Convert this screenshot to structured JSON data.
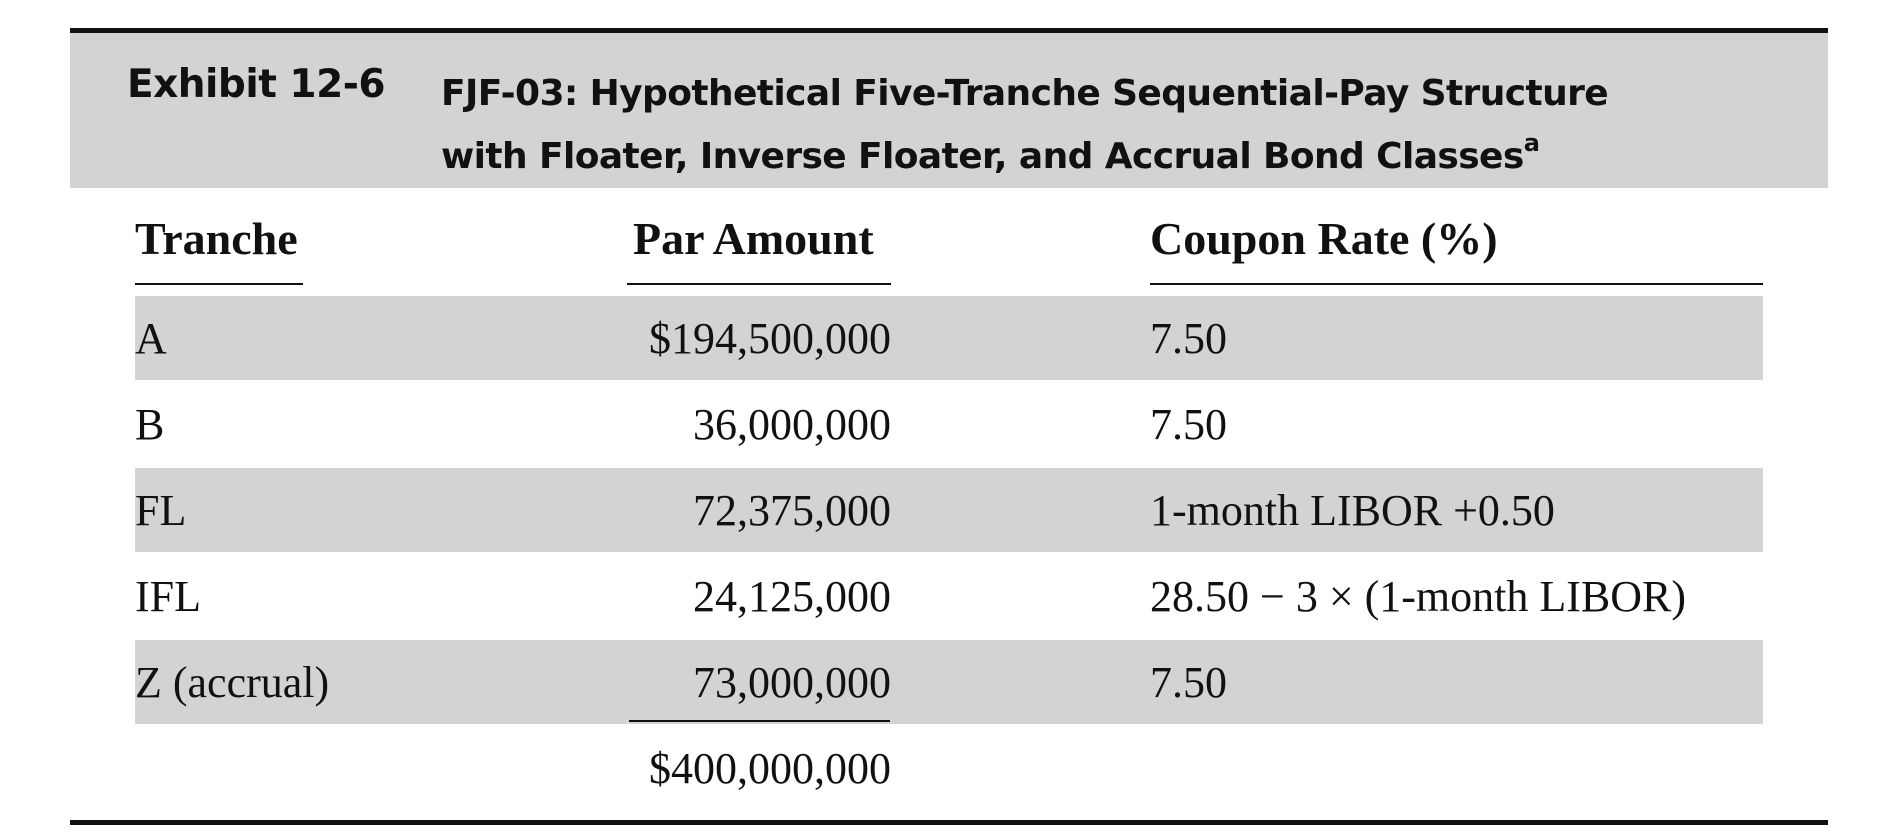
{
  "exhibit": {
    "label": "Exhibit 12-6",
    "title_line1": "FJF-03: Hypothetical Five-Tranche Sequential-Pay Structure",
    "title_line2": "with Floater, Inverse Floater, and Accrual Bond Classes",
    "title_footnote_mark": "a"
  },
  "table": {
    "headers": {
      "tranche": "Tranche",
      "par_amount": "Par Amount",
      "coupon_rate": "Coupon Rate (%)"
    },
    "rows": [
      {
        "tranche": "A",
        "par_amount": "$194,500,000",
        "coupon_rate": "7.50",
        "shaded": true
      },
      {
        "tranche": "B",
        "par_amount": "36,000,000",
        "coupon_rate": "7.50",
        "shaded": false
      },
      {
        "tranche": "FL",
        "par_amount": "72,375,000",
        "coupon_rate": "1-month LIBOR +0.50",
        "shaded": true
      },
      {
        "tranche": "IFL",
        "par_amount": "24,125,000",
        "coupon_rate": "28.50 − 3 × (1-month LIBOR)",
        "shaded": false
      },
      {
        "tranche": "Z (accrual)",
        "par_amount": "73,000,000",
        "coupon_rate": "7.50",
        "shaded": true
      }
    ],
    "total": "$400,000,000"
  },
  "colors": {
    "band_gray": "#d3d3d3",
    "text": "#111111",
    "background": "#ffffff"
  }
}
